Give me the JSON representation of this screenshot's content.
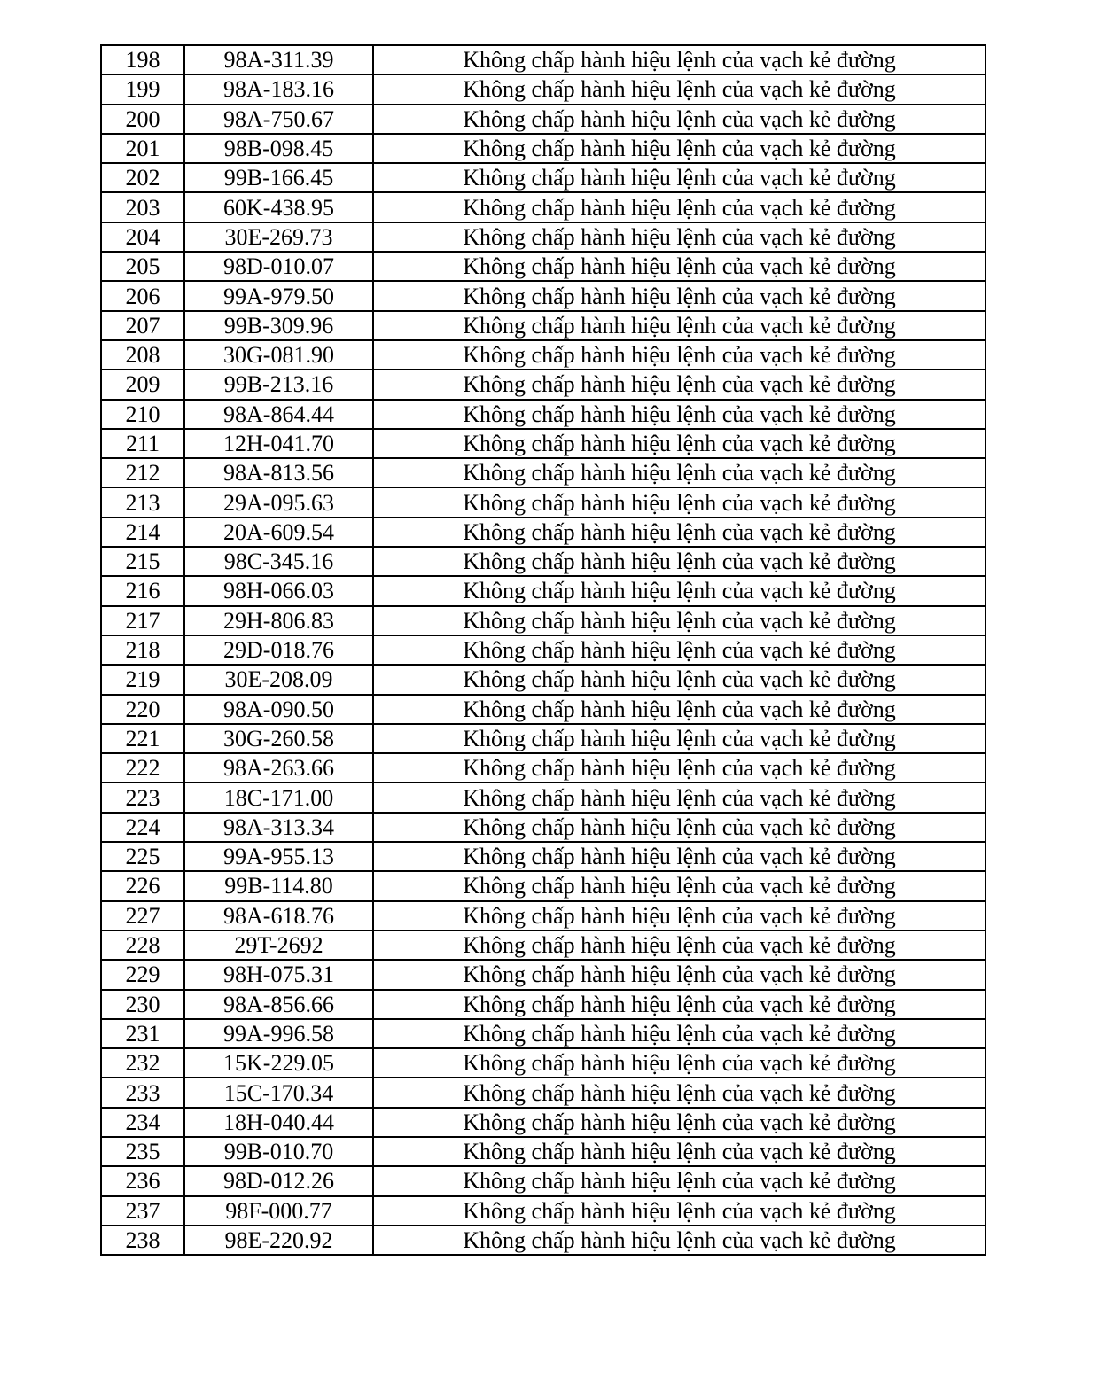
{
  "table": {
    "rows": [
      {
        "no": "198",
        "plate": "98A-311.39",
        "violation": "Không chấp hành hiệu lệnh của vạch kẻ đường"
      },
      {
        "no": "199",
        "plate": "98A-183.16",
        "violation": "Không chấp hành hiệu lệnh của vạch kẻ đường"
      },
      {
        "no": "200",
        "plate": "98A-750.67",
        "violation": "Không chấp hành hiệu lệnh của vạch kẻ đường"
      },
      {
        "no": "201",
        "plate": "98B-098.45",
        "violation": "Không chấp hành hiệu lệnh của vạch kẻ đường"
      },
      {
        "no": "202",
        "plate": "99B-166.45",
        "violation": "Không chấp hành hiệu lệnh của vạch kẻ đường"
      },
      {
        "no": "203",
        "plate": "60K-438.95",
        "violation": "Không chấp hành hiệu lệnh của vạch kẻ đường"
      },
      {
        "no": "204",
        "plate": "30E-269.73",
        "violation": "Không chấp hành hiệu lệnh của vạch kẻ đường"
      },
      {
        "no": "205",
        "plate": "98D-010.07",
        "violation": "Không chấp hành hiệu lệnh của vạch kẻ đường"
      },
      {
        "no": "206",
        "plate": "99A-979.50",
        "violation": "Không chấp hành hiệu lệnh của vạch kẻ đường"
      },
      {
        "no": "207",
        "plate": "99B-309.96",
        "violation": "Không chấp hành hiệu lệnh của vạch kẻ đường"
      },
      {
        "no": "208",
        "plate": "30G-081.90",
        "violation": "Không chấp hành hiệu lệnh của vạch kẻ đường"
      },
      {
        "no": "209",
        "plate": "99B-213.16",
        "violation": "Không chấp hành hiệu lệnh của vạch kẻ đường"
      },
      {
        "no": "210",
        "plate": "98A-864.44",
        "violation": "Không chấp hành hiệu lệnh của vạch kẻ đường"
      },
      {
        "no": "211",
        "plate": "12H-041.70",
        "violation": "Không chấp hành hiệu lệnh của vạch kẻ đường"
      },
      {
        "no": "212",
        "plate": "98A-813.56",
        "violation": "Không chấp hành hiệu lệnh của vạch kẻ đường"
      },
      {
        "no": "213",
        "plate": "29A-095.63",
        "violation": "Không chấp hành hiệu lệnh của vạch kẻ đường"
      },
      {
        "no": "214",
        "plate": "20A-609.54",
        "violation": "Không chấp hành hiệu lệnh của vạch kẻ đường"
      },
      {
        "no": "215",
        "plate": "98C-345.16",
        "violation": "Không chấp hành hiệu lệnh của vạch kẻ đường"
      },
      {
        "no": "216",
        "plate": "98H-066.03",
        "violation": "Không chấp hành hiệu lệnh của vạch kẻ đường"
      },
      {
        "no": "217",
        "plate": "29H-806.83",
        "violation": "Không chấp hành hiệu lệnh của vạch kẻ đường"
      },
      {
        "no": "218",
        "plate": "29D-018.76",
        "violation": "Không chấp hành hiệu lệnh của vạch kẻ đường"
      },
      {
        "no": "219",
        "plate": "30E-208.09",
        "violation": "Không chấp hành hiệu lệnh của vạch kẻ đường"
      },
      {
        "no": "220",
        "plate": "98A-090.50",
        "violation": "Không chấp hành hiệu lệnh của vạch kẻ đường"
      },
      {
        "no": "221",
        "plate": "30G-260.58",
        "violation": "Không chấp hành hiệu lệnh của vạch kẻ đường"
      },
      {
        "no": "222",
        "plate": "98A-263.66",
        "violation": "Không chấp hành hiệu lệnh của vạch kẻ đường"
      },
      {
        "no": "223",
        "plate": "18C-171.00",
        "violation": "Không chấp hành hiệu lệnh của vạch kẻ đường"
      },
      {
        "no": "224",
        "plate": "98A-313.34",
        "violation": "Không chấp hành hiệu lệnh của vạch kẻ đường"
      },
      {
        "no": "225",
        "plate": "99A-955.13",
        "violation": "Không chấp hành hiệu lệnh của vạch kẻ đường"
      },
      {
        "no": "226",
        "plate": "99B-114.80",
        "violation": "Không chấp hành hiệu lệnh của vạch kẻ đường"
      },
      {
        "no": "227",
        "plate": "98A-618.76",
        "violation": "Không chấp hành hiệu lệnh của vạch kẻ đường"
      },
      {
        "no": "228",
        "plate": "29T-2692",
        "violation": "Không chấp hành hiệu lệnh của vạch kẻ đường"
      },
      {
        "no": "229",
        "plate": "98H-075.31",
        "violation": "Không chấp hành hiệu lệnh của vạch kẻ đường"
      },
      {
        "no": "230",
        "plate": "98A-856.66",
        "violation": "Không chấp hành hiệu lệnh của vạch kẻ đường"
      },
      {
        "no": "231",
        "plate": "99A-996.58",
        "violation": "Không chấp hành hiệu lệnh của vạch kẻ đường"
      },
      {
        "no": "232",
        "plate": "15K-229.05",
        "violation": "Không chấp hành hiệu lệnh của vạch kẻ đường"
      },
      {
        "no": "233",
        "plate": "15C-170.34",
        "violation": "Không chấp hành hiệu lệnh của vạch kẻ đường"
      },
      {
        "no": "234",
        "plate": "18H-040.44",
        "violation": "Không chấp hành hiệu lệnh của vạch kẻ đường"
      },
      {
        "no": "235",
        "plate": "99B-010.70",
        "violation": "Không chấp hành hiệu lệnh của vạch kẻ đường"
      },
      {
        "no": "236",
        "plate": "98D-012.26",
        "violation": "Không chấp hành hiệu lệnh của vạch kẻ đường"
      },
      {
        "no": "237",
        "plate": "98F-000.77",
        "violation": "Không chấp hành hiệu lệnh của vạch kẻ đường"
      },
      {
        "no": "238",
        "plate": "98E-220.92",
        "violation": "Không chấp hành hiệu lệnh của vạch kẻ đường"
      }
    ]
  }
}
